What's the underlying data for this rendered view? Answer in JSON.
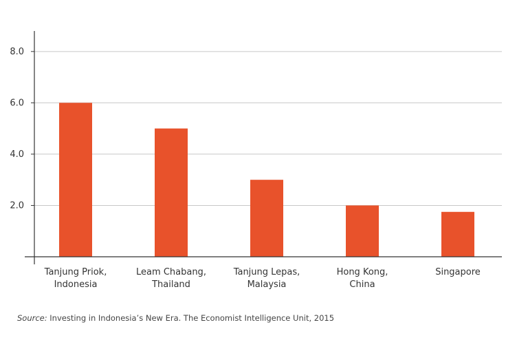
{
  "chart_data": {
    "type": "bar",
    "categories": [
      [
        "Tanjung Priok,",
        "Indonesia"
      ],
      [
        "Leam Chabang,",
        "Thailand"
      ],
      [
        "Tanjung Lepas,",
        "Malaysia"
      ],
      [
        "Hong Kong,",
        "China"
      ],
      [
        "Singapore"
      ]
    ],
    "values": [
      6.0,
      5.0,
      3.0,
      2.0,
      1.75
    ],
    "ylim": [
      0,
      8.8
    ],
    "yticks": [
      "2.0",
      "4.0",
      "6.0",
      "8.0"
    ],
    "ytick_values": [
      2,
      4,
      6,
      8
    ],
    "grid": true,
    "bar_color": "#e8522b"
  },
  "source": {
    "prefix": "Source:",
    "text": " Investing in Indonesia’s New Era. The Economist Intelligence Unit, 2015"
  }
}
